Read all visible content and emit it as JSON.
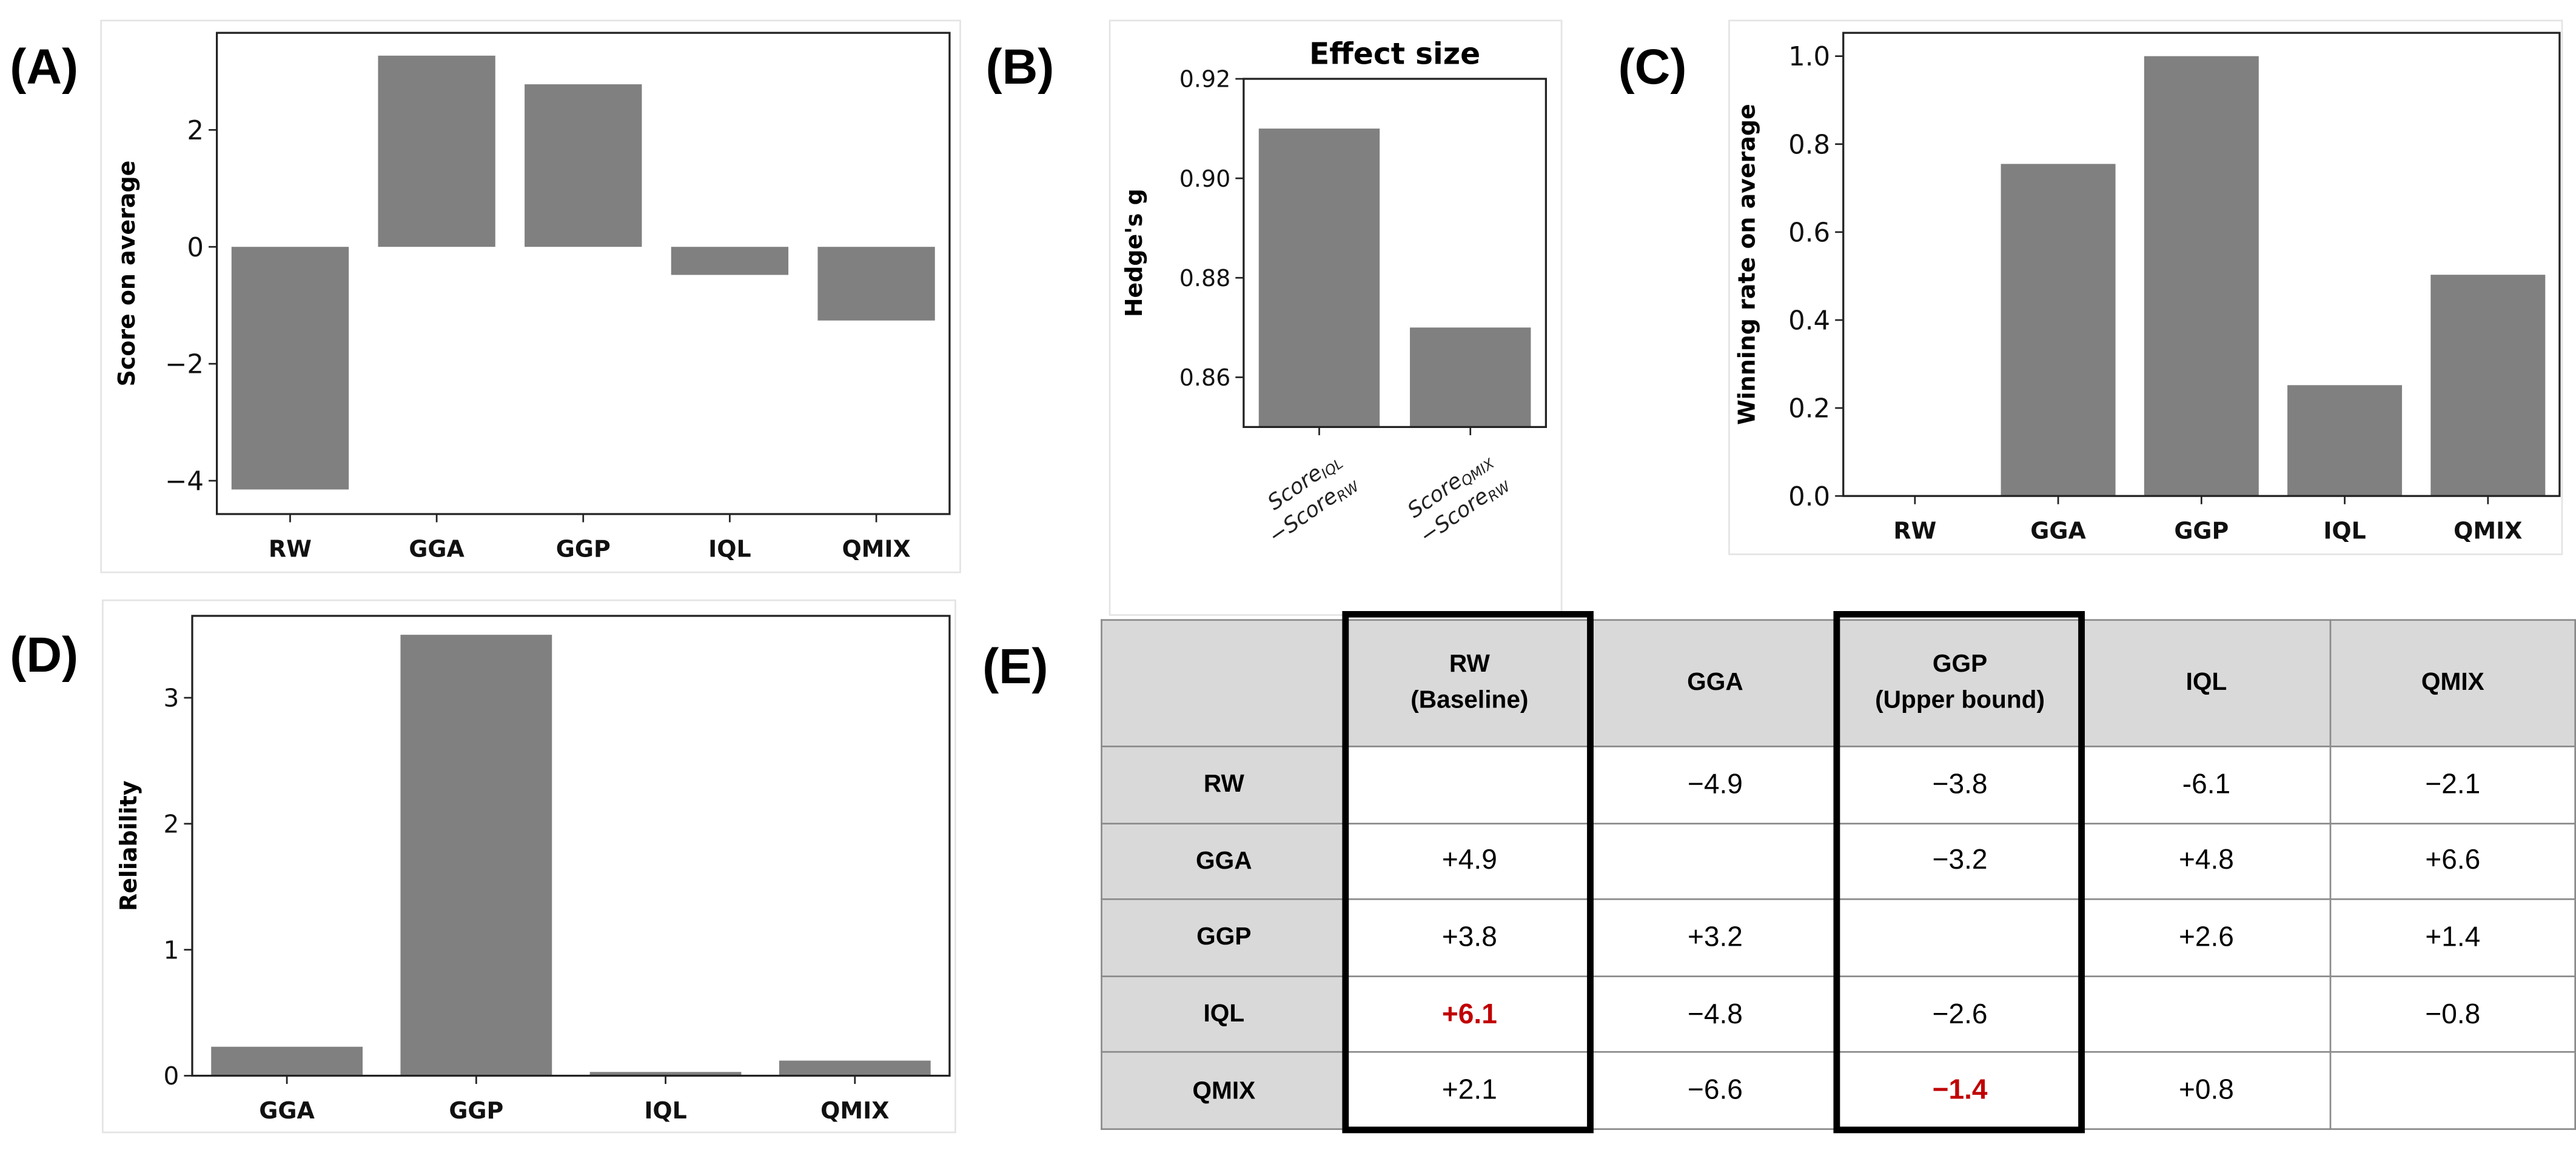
{
  "panel_labels": {
    "A": "(A)",
    "B": "(B)",
    "C": "(C)",
    "D": "(D)",
    "E": "(E)"
  },
  "bar_color": "#808080",
  "chart_data": [
    {
      "id": "A",
      "type": "bar",
      "title": "",
      "categories": [
        "RW",
        "GGA",
        "GGP",
        "IQL",
        "QMIX"
      ],
      "values": [
        -4.15,
        3.27,
        2.78,
        -0.48,
        -1.26
      ],
      "xlabel": "",
      "ylabel": "Score on average",
      "yticks": [
        -4,
        -2,
        0,
        2
      ],
      "ytick_labels": [
        "−4",
        "−2",
        "0",
        "2"
      ],
      "ylim": [
        -4.57,
        3.66
      ],
      "grid": false
    },
    {
      "id": "B",
      "type": "bar",
      "title": "Effect size",
      "categories": [
        [
          [
            "Score",
            "IQL"
          ],
          [
            "−Score",
            "RW"
          ]
        ],
        [
          [
            "Score",
            "QMIX"
          ],
          [
            "−Score",
            "RW"
          ]
        ]
      ],
      "values": [
        0.91,
        0.87
      ],
      "xlabel": "",
      "ylabel": "Hedge's g",
      "yticks": [
        0.86,
        0.88,
        0.9,
        0.92
      ],
      "ytick_labels": [
        "0.86",
        "0.88",
        "0.90",
        "0.92"
      ],
      "ylim": [
        0.85,
        0.92
      ],
      "grid": false
    },
    {
      "id": "C",
      "type": "bar",
      "title": "",
      "categories": [
        "RW",
        "GGA",
        "GGP",
        "IQL",
        "QMIX"
      ],
      "values": [
        0.0,
        0.755,
        1.0,
        0.252,
        0.503
      ],
      "xlabel": "",
      "ylabel": "Winning rate on average",
      "yticks": [
        0,
        0.2,
        0.4,
        0.6,
        0.8,
        1.0
      ],
      "ytick_labels": [
        "0.0",
        "0.2",
        "0.4",
        "0.6",
        "0.8",
        "1.0"
      ],
      "ylim": [
        0,
        1.053
      ],
      "grid": false
    },
    {
      "id": "D",
      "type": "bar",
      "title": "",
      "categories": [
        "GGA",
        "GGP",
        "IQL",
        "QMIX"
      ],
      "values": [
        0.23,
        3.5,
        0.03,
        0.12
      ],
      "xlabel": "",
      "ylabel": "Reliability",
      "yticks": [
        0,
        1,
        2,
        3
      ],
      "ytick_labels": [
        "0",
        "1",
        "2",
        "3"
      ],
      "ylim": [
        0,
        3.65
      ],
      "grid": false
    }
  ],
  "table": {
    "type": "table",
    "columns": [
      {
        "name": "RW",
        "sub": "(Baseline)"
      },
      {
        "name": "GGA",
        "sub": ""
      },
      {
        "name": "GGP",
        "sub": "(Upper bound)"
      },
      {
        "name": "IQL",
        "sub": ""
      },
      {
        "name": "QMIX",
        "sub": ""
      }
    ],
    "rows": [
      {
        "label": "RW",
        "cells": [
          "",
          "−4.9",
          "−3.8",
          "-6.1",
          "−2.1"
        ]
      },
      {
        "label": "GGA",
        "cells": [
          "+4.9",
          "",
          "−3.2",
          "+4.8",
          "+6.6"
        ]
      },
      {
        "label": "GGP",
        "cells": [
          "+3.8",
          "+3.2",
          "",
          "+2.6",
          "+1.4"
        ]
      },
      {
        "label": "IQL",
        "cells": [
          "+6.1",
          "−4.8",
          "−2.6",
          "",
          "−0.8"
        ]
      },
      {
        "label": "QMIX",
        "cells": [
          "+2.1",
          "−6.6",
          "−1.4",
          "+0.8",
          ""
        ]
      }
    ],
    "highlighted_cells": [
      [
        3,
        0
      ],
      [
        4,
        2
      ]
    ],
    "highlight_color": "#c00000"
  }
}
